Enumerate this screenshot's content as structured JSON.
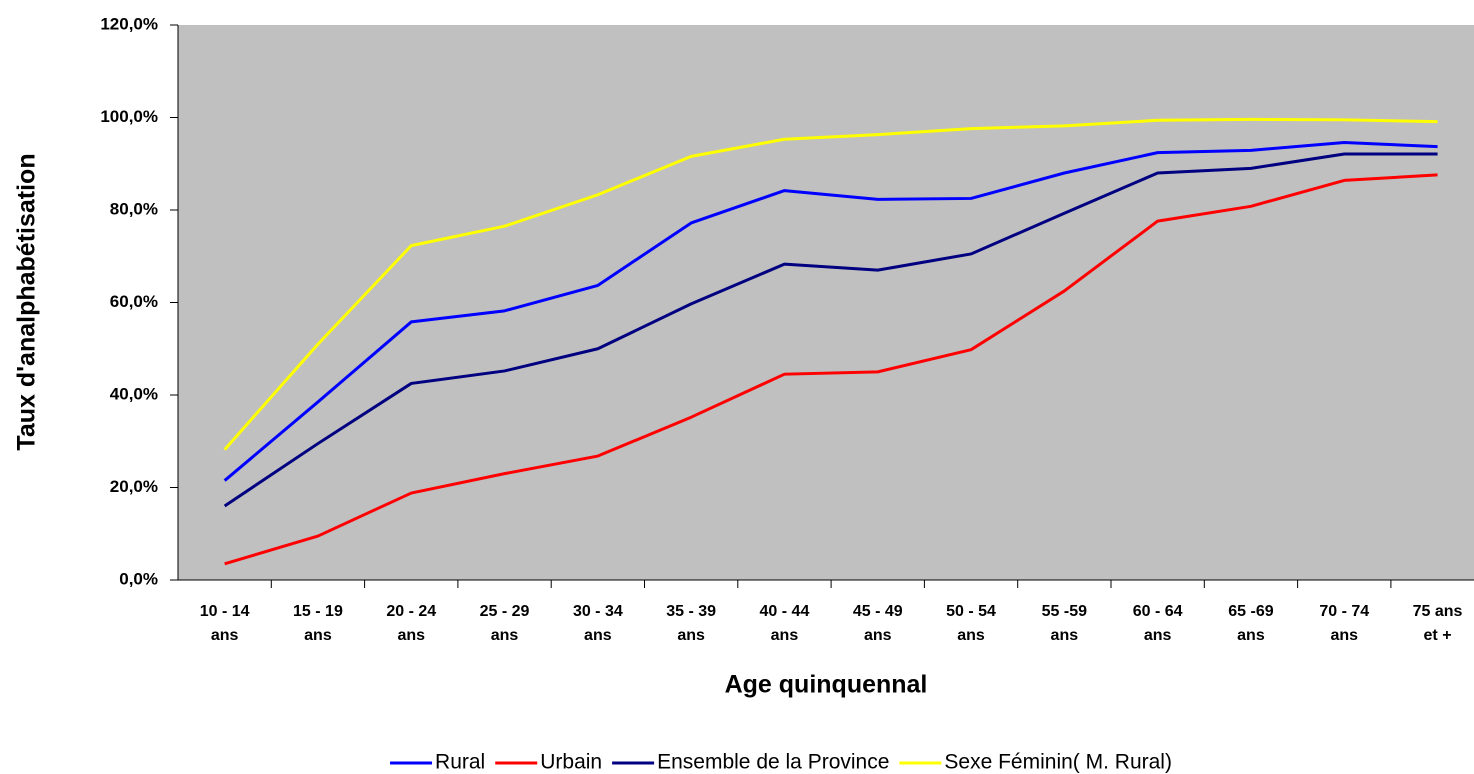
{
  "chart_data": {
    "type": "line",
    "x_label": "Age quinquennal",
    "y_label": "Taux d'analphabétisation",
    "categories": [
      [
        "10 - 14",
        "ans"
      ],
      [
        "15 - 19",
        "ans"
      ],
      [
        "20 - 24",
        "ans"
      ],
      [
        "25 - 29",
        "ans"
      ],
      [
        "30 - 34",
        "ans"
      ],
      [
        "35 - 39",
        "ans"
      ],
      [
        "40 - 44",
        "ans"
      ],
      [
        "45 - 49",
        "ans"
      ],
      [
        "50 - 54",
        "ans"
      ],
      [
        "55 -59",
        "ans"
      ],
      [
        "60 - 64",
        "ans"
      ],
      [
        "65 -69",
        "ans"
      ],
      [
        "70 - 74",
        "ans"
      ],
      [
        "75 ans",
        "et +"
      ]
    ],
    "series": [
      {
        "name": "Rural",
        "color": "#0000ff",
        "values": [
          21.5,
          38.5,
          55.8,
          58.2,
          63.7,
          77.2,
          84.2,
          82.3,
          82.5,
          88,
          92.4,
          92.9,
          94.6,
          93.7
        ]
      },
      {
        "name": "Urbain",
        "color": "#ff0000",
        "values": [
          3.5,
          9.5,
          18.8,
          23,
          26.8,
          35.2,
          44.5,
          45,
          49.8,
          62.5,
          77.6,
          80.8,
          86.4,
          87.6
        ]
      },
      {
        "name": "Ensemble de la Province",
        "color": "#000080",
        "values": [
          16,
          29.5,
          42.5,
          45.2,
          50,
          59.7,
          68.3,
          67,
          70.5,
          79.3,
          88,
          89,
          92.1,
          92.1
        ]
      },
      {
        "name": "Sexe Féminin( M. Rural)",
        "color": "#ffff00",
        "values": [
          28.2,
          51,
          72.3,
          76.5,
          83.3,
          91.6,
          95.3,
          96.3,
          97.6,
          98.2,
          99.4,
          99.6,
          99.5,
          99.1
        ]
      }
    ],
    "ylim": [
      0,
      120
    ],
    "yticks": [
      {
        "value": 0,
        "label": "0,0%"
      },
      {
        "value": 20,
        "label": "20,0%"
      },
      {
        "value": 40,
        "label": "40,0%"
      },
      {
        "value": 60,
        "label": "60,0%"
      },
      {
        "value": 80,
        "label": "80,0%"
      },
      {
        "value": 100,
        "label": "100,0%"
      },
      {
        "value": 120,
        "label": "120,0%"
      }
    ],
    "legend": "bottom"
  }
}
